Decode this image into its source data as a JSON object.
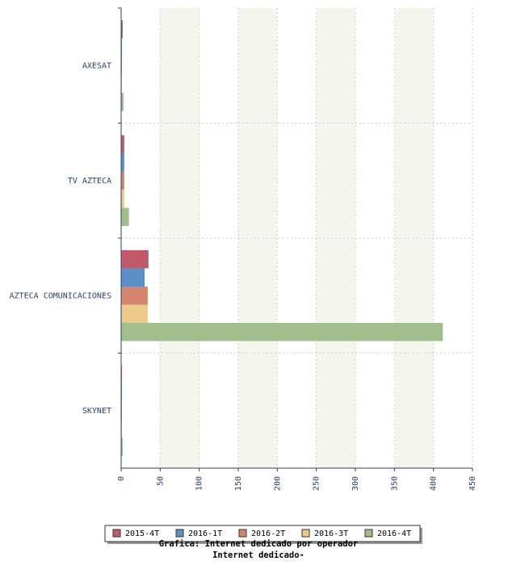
{
  "chart_data": {
    "type": "bar",
    "orientation": "horizontal",
    "title": "Grafica: Internet dedicado por operador",
    "subtitle": "Internet dedicado-",
    "categories": [
      "AXESAT",
      "TV AZTECA",
      "AZTECA COMUNICACIONES",
      "SKYNET"
    ],
    "series": [
      {
        "name": "2015-4T",
        "color": "#c0596a",
        "values": [
          2,
          4,
          35,
          1
        ]
      },
      {
        "name": "2016-1T",
        "color": "#5b8ec4",
        "values": [
          1,
          4,
          30,
          1
        ]
      },
      {
        "name": "2016-2T",
        "color": "#d4856c",
        "values": [
          1,
          4,
          34,
          1
        ]
      },
      {
        "name": "2016-3T",
        "color": "#edca8a",
        "values": [
          1,
          4,
          34,
          1
        ]
      },
      {
        "name": "2016-4T",
        "color": "#a2be8d",
        "values": [
          3,
          10,
          412,
          2
        ]
      }
    ],
    "xlim": [
      0,
      450
    ],
    "xticks": [
      0,
      50,
      100,
      150,
      200,
      250,
      300,
      350,
      400,
      450
    ],
    "grid": true
  }
}
